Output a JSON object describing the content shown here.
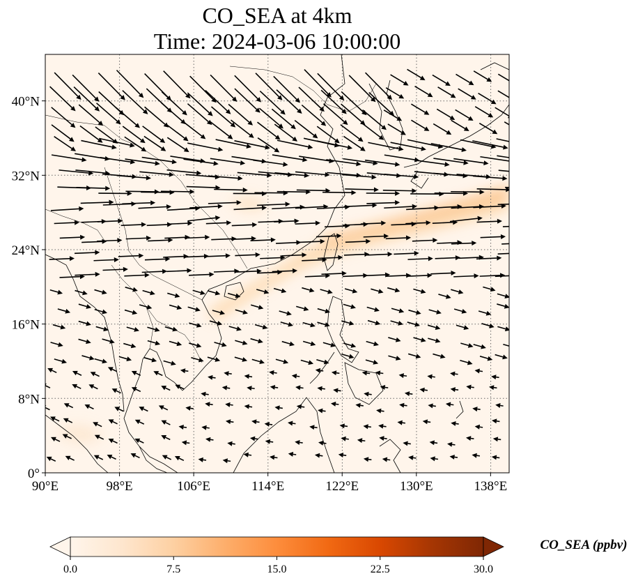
{
  "title_line1": "CO_SEA at 4km",
  "title_line2": "Time: 2024-03-06 10:00:00",
  "map": {
    "lon_range": [
      90,
      140
    ],
    "lat_range": [
      0,
      45
    ],
    "lon_ticks": [
      {
        "value": 90,
        "label": "90°E"
      },
      {
        "value": 98,
        "label": "98°E"
      },
      {
        "value": 106,
        "label": "106°E"
      },
      {
        "value": 114,
        "label": "114°E"
      },
      {
        "value": 122,
        "label": "122°E"
      },
      {
        "value": 130,
        "label": "130°E"
      },
      {
        "value": 138,
        "label": "138°E"
      }
    ],
    "lat_ticks": [
      {
        "value": 0,
        "label": "0°"
      },
      {
        "value": 8,
        "label": "8°N"
      },
      {
        "value": 16,
        "label": "16°N"
      },
      {
        "value": 24,
        "label": "24°N"
      },
      {
        "value": 32,
        "label": "32°N"
      },
      {
        "value": 40,
        "label": "40°N"
      }
    ],
    "gridlines": true
  },
  "colorbar": {
    "label": "CO_SEA (ppbv)",
    "min": 0,
    "max": 30,
    "ticks": [
      "0.0",
      "7.5",
      "15.0",
      "22.5",
      "30.0"
    ],
    "colors": [
      "#fff5eb",
      "#fee6ce",
      "#fdd0a2",
      "#fdae6b",
      "#fd8d3c",
      "#f16913",
      "#d94801",
      "#a63603",
      "#7f2704"
    ],
    "extend": "both"
  },
  "colors": {
    "background_field": "#fff5eb",
    "plume": "#fdd9ae"
  }
}
